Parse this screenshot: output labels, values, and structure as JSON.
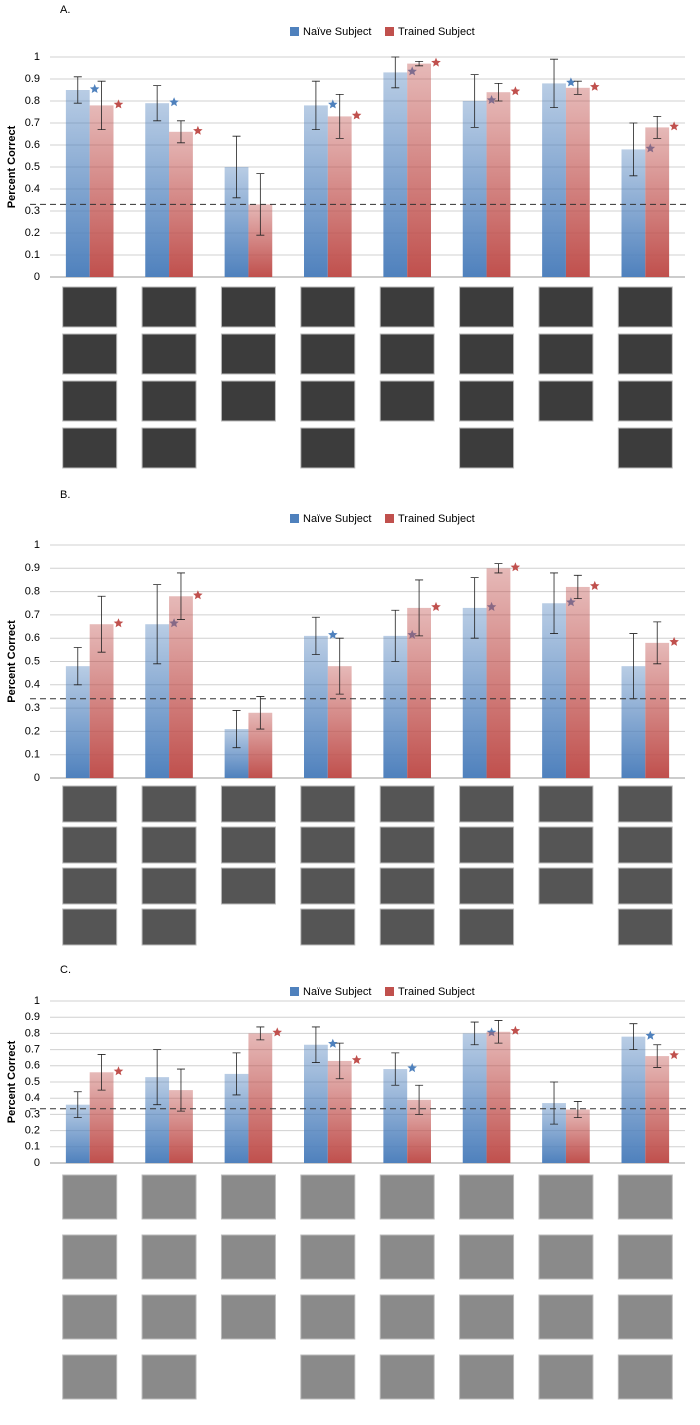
{
  "chart_data": [
    {
      "type": "bar",
      "title": "A.",
      "ylabel": "Percent Correct",
      "legend": "top",
      "grid": true,
      "categories": [
        null,
        null,
        null,
        null,
        null,
        null,
        null,
        null
      ],
      "ylim": [
        0,
        1
      ],
      "yticks": [
        0,
        0.1,
        0.2,
        0.3,
        0.4,
        0.5,
        0.6,
        0.7,
        0.8,
        0.9,
        1
      ],
      "reference_line": 0.33,
      "series": [
        {
          "name": "Naïve Subject",
          "color": "#4f81bd",
          "values": [
            0.85,
            0.79,
            0.5,
            0.78,
            0.93,
            0.8,
            0.88,
            0.58
          ],
          "errors": [
            0.06,
            0.08,
            0.14,
            0.11,
            0.07,
            0.12,
            0.11,
            0.12
          ],
          "significant": [
            true,
            true,
            false,
            true,
            true,
            true,
            true,
            true
          ]
        },
        {
          "name": "Trained Subject",
          "color": "#c0504d",
          "values": [
            0.78,
            0.66,
            0.33,
            0.73,
            0.97,
            0.84,
            0.86,
            0.68
          ],
          "errors": [
            0.11,
            0.05,
            0.14,
            0.1,
            0.01,
            0.04,
            0.03,
            0.05
          ],
          "significant": [
            true,
            true,
            false,
            true,
            true,
            true,
            true,
            true
          ]
        }
      ]
    },
    {
      "type": "bar",
      "title": "B.",
      "ylabel": "Percent Correct",
      "legend": "top",
      "grid": true,
      "categories": [
        null,
        null,
        null,
        null,
        null,
        null,
        null,
        null
      ],
      "ylim": [
        0,
        1
      ],
      "yticks": [
        0,
        0.1,
        0.2,
        0.3,
        0.4,
        0.5,
        0.6,
        0.7,
        0.8,
        0.9,
        1
      ],
      "reference_line": 0.34,
      "series": [
        {
          "name": "Naïve Subject",
          "color": "#4f81bd",
          "values": [
            0.48,
            0.66,
            0.21,
            0.61,
            0.61,
            0.73,
            0.75,
            0.48
          ],
          "errors": [
            0.08,
            0.17,
            0.08,
            0.08,
            0.11,
            0.13,
            0.13,
            0.14
          ],
          "significant": [
            false,
            true,
            false,
            true,
            true,
            true,
            true,
            false
          ]
        },
        {
          "name": "Trained Subject",
          "color": "#c0504d",
          "values": [
            0.66,
            0.78,
            0.28,
            0.48,
            0.73,
            0.9,
            0.82,
            0.58
          ],
          "errors": [
            0.12,
            0.1,
            0.07,
            0.12,
            0.12,
            0.02,
            0.05,
            0.09
          ],
          "significant": [
            true,
            true,
            false,
            false,
            true,
            true,
            true,
            true
          ]
        }
      ]
    },
    {
      "type": "bar",
      "title": "C.",
      "ylabel": "Percent Correct",
      "legend": "top",
      "grid": true,
      "categories": [
        null,
        null,
        null,
        null,
        null,
        null,
        null,
        null
      ],
      "ylim": [
        0,
        1
      ],
      "yticks": [
        0,
        0.1,
        0.2,
        0.3,
        0.4,
        0.5,
        0.6,
        0.7,
        0.8,
        0.9,
        1
      ],
      "reference_line": 0.335,
      "series": [
        {
          "name": "Naïve Subject",
          "color": "#4f81bd",
          "values": [
            0.36,
            0.53,
            0.55,
            0.73,
            0.58,
            0.8,
            0.37,
            0.78
          ],
          "errors": [
            0.08,
            0.17,
            0.13,
            0.11,
            0.1,
            0.07,
            0.13,
            0.08
          ],
          "significant": [
            false,
            false,
            false,
            true,
            true,
            true,
            false,
            true
          ]
        },
        {
          "name": "Trained Subject",
          "color": "#c0504d",
          "values": [
            0.56,
            0.45,
            0.8,
            0.63,
            0.39,
            0.81,
            0.33,
            0.66
          ],
          "errors": [
            0.11,
            0.13,
            0.04,
            0.11,
            0.09,
            0.07,
            0.05,
            0.07
          ],
          "significant": [
            true,
            false,
            true,
            true,
            false,
            true,
            false,
            true
          ]
        }
      ]
    }
  ]
}
